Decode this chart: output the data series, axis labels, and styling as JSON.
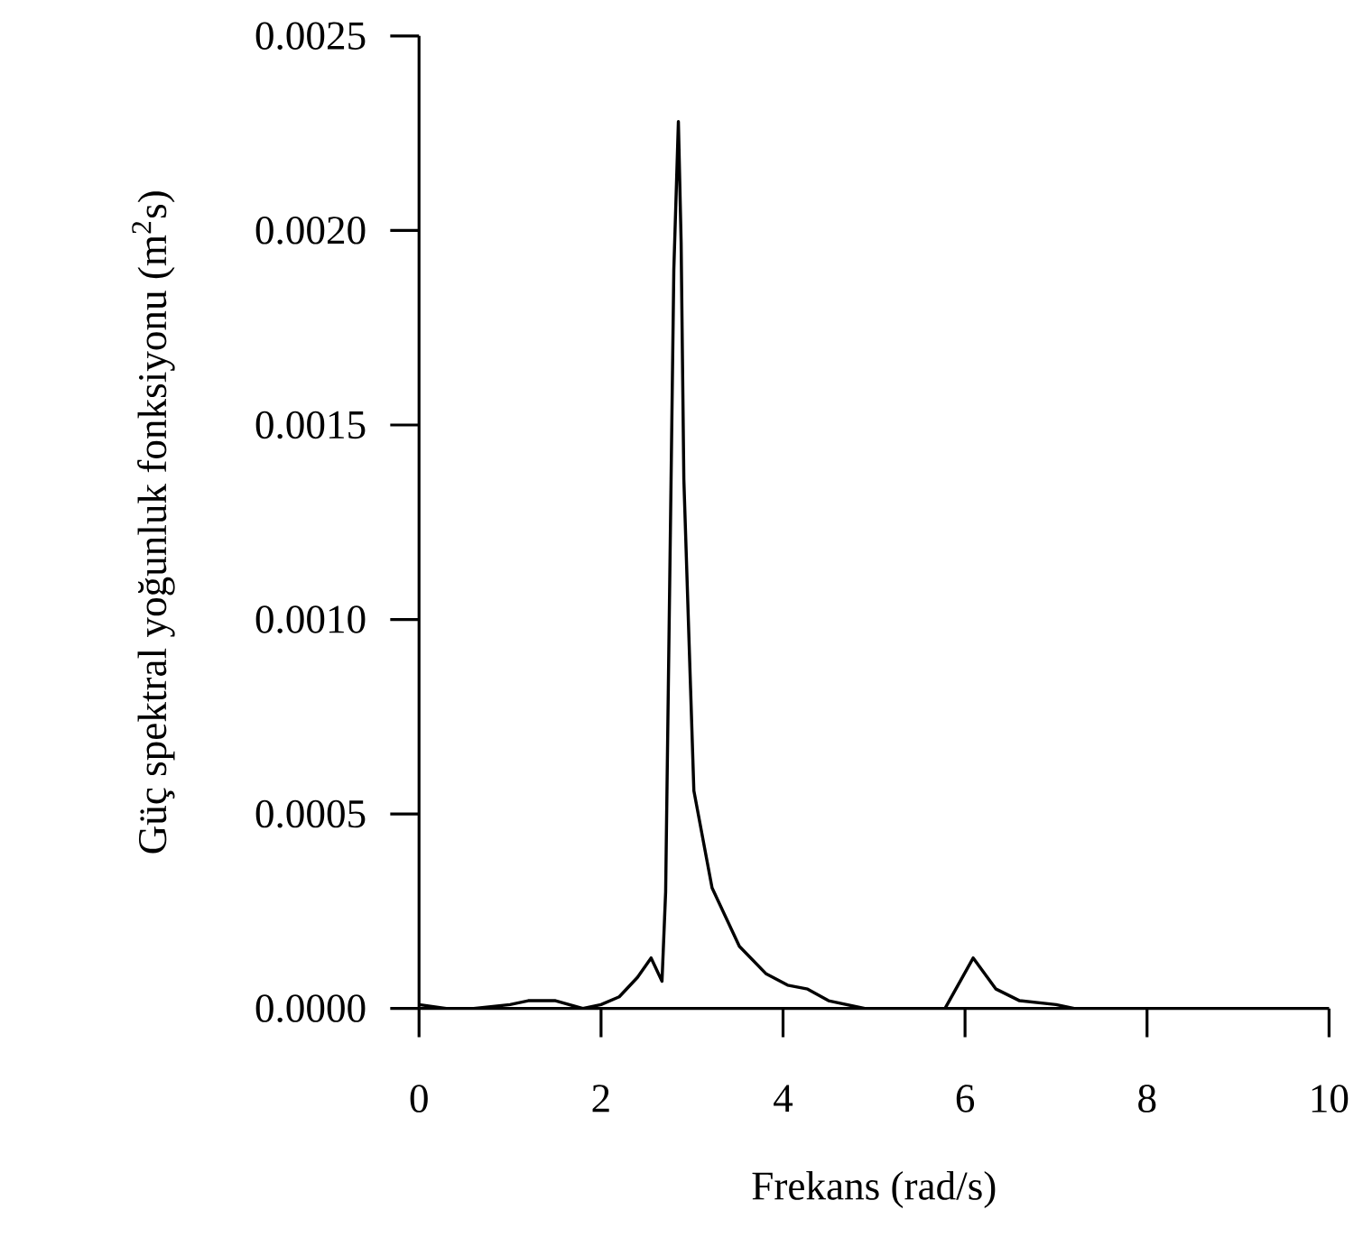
{
  "chart_data": {
    "type": "line",
    "xlabel": "Frekans (rad/s)",
    "ylabel": "Güç spektral yoğunluk fonksiyonu (m$^{2}$s)",
    "series": [
      {
        "color": "#000000",
        "x": [
          0,
          0.3,
          0.6,
          1.0,
          1.2,
          1.5,
          1.8,
          2.0,
          2.2,
          2.4,
          2.55,
          2.67,
          2.71,
          2.8,
          2.85,
          2.88,
          2.91,
          3.02,
          3.22,
          3.52,
          3.81,
          4.05,
          4.27,
          4.5,
          4.9,
          5.4,
          5.78,
          6.09,
          6.34,
          6.6,
          7.0,
          7.2,
          8.0,
          9.0,
          10.0
        ],
        "values": [
          1e-05,
          0,
          0,
          1e-05,
          2e-05,
          2e-05,
          0,
          1e-05,
          3e-05,
          8e-05,
          0.00013,
          7e-05,
          0.0003,
          0.0019,
          0.00228,
          0.00197,
          0.00136,
          0.00056,
          0.00031,
          0.00016,
          9e-05,
          6e-05,
          5e-05,
          2e-05,
          0,
          0,
          0,
          0.00013,
          5e-05,
          2e-05,
          1e-05,
          0,
          0,
          0,
          0
        ]
      }
    ],
    "xlim": [
      0,
      10
    ],
    "xticks": [
      0,
      2,
      4,
      6,
      8,
      10
    ],
    "ylim": [
      0,
      0.0025
    ],
    "yticks": [
      {
        "value": 0,
        "label": "0.0000"
      },
      {
        "value": 0.0005,
        "label": "0.0005"
      },
      {
        "value": 0.001,
        "label": "0.0010"
      },
      {
        "value": 0.0015,
        "label": "0.0015"
      },
      {
        "value": 0.002,
        "label": "0.0020"
      },
      {
        "value": 0.0025,
        "label": "0.0025"
      }
    ],
    "marker": "none",
    "line_style": "solid"
  }
}
